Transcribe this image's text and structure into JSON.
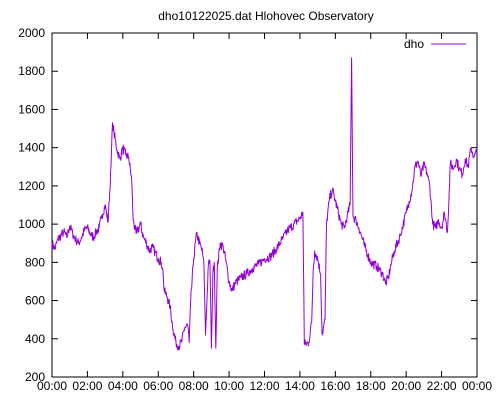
{
  "chart_data": {
    "type": "line",
    "title": "dho10122025.dat Hlohovec Observatory",
    "xlabel": "",
    "ylabel": "",
    "x_unit": "time of day (HH:MM)",
    "xlim": [
      "00:00",
      "24:00"
    ],
    "ylim": [
      200,
      2000
    ],
    "x_ticks": [
      "00:00",
      "02:00",
      "04:00",
      "06:00",
      "08:00",
      "10:00",
      "12:00",
      "14:00",
      "16:00",
      "18:00",
      "20:00",
      "22:00",
      "00:00"
    ],
    "y_ticks": [
      200,
      400,
      600,
      800,
      1000,
      1200,
      1400,
      1600,
      1800,
      2000
    ],
    "grid": false,
    "legend": {
      "position": "top-right"
    },
    "series": [
      {
        "name": "dho",
        "color": "#9400d3",
        "points": [
          [
            "00:00",
            900
          ],
          [
            "00:10",
            870
          ],
          [
            "00:20",
            920
          ],
          [
            "00:30",
            940
          ],
          [
            "00:40",
            960
          ],
          [
            "00:50",
            930
          ],
          [
            "01:00",
            990
          ],
          [
            "01:10",
            950
          ],
          [
            "01:20",
            920
          ],
          [
            "01:30",
            900
          ],
          [
            "01:40",
            930
          ],
          [
            "01:50",
            970
          ],
          [
            "02:00",
            980
          ],
          [
            "02:10",
            950
          ],
          [
            "02:20",
            930
          ],
          [
            "02:30",
            960
          ],
          [
            "02:40",
            980
          ],
          [
            "02:50",
            1050
          ],
          [
            "03:00",
            1100
          ],
          [
            "03:10",
            1010
          ],
          [
            "03:20",
            1300
          ],
          [
            "03:25",
            1530
          ],
          [
            "03:30",
            1480
          ],
          [
            "03:40",
            1390
          ],
          [
            "03:50",
            1340
          ],
          [
            "04:00",
            1400
          ],
          [
            "04:10",
            1360
          ],
          [
            "04:20",
            1350
          ],
          [
            "04:30",
            1230
          ],
          [
            "04:35",
            1020
          ],
          [
            "04:45",
            950
          ],
          [
            "05:00",
            1000
          ],
          [
            "05:10",
            930
          ],
          [
            "05:20",
            900
          ],
          [
            "05:30",
            860
          ],
          [
            "05:40",
            880
          ],
          [
            "05:50",
            850
          ],
          [
            "06:00",
            820
          ],
          [
            "06:10",
            800
          ],
          [
            "06:15",
            770
          ],
          [
            "06:20",
            650
          ],
          [
            "06:30",
            620
          ],
          [
            "06:40",
            570
          ],
          [
            "06:50",
            450
          ],
          [
            "07:00",
            380
          ],
          [
            "07:10",
            360
          ],
          [
            "07:20",
            390
          ],
          [
            "07:30",
            460
          ],
          [
            "07:40",
            470
          ],
          [
            "07:45",
            380
          ],
          [
            "07:50",
            600
          ],
          [
            "08:00",
            820
          ],
          [
            "08:10",
            950
          ],
          [
            "08:20",
            900
          ],
          [
            "08:30",
            850
          ],
          [
            "08:35",
            780
          ],
          [
            "08:40",
            420
          ],
          [
            "08:50",
            790
          ],
          [
            "08:55",
            810
          ],
          [
            "09:00",
            350
          ],
          [
            "09:05",
            740
          ],
          [
            "09:10",
            800
          ],
          [
            "09:15",
            350
          ],
          [
            "09:20",
            770
          ],
          [
            "09:30",
            900
          ],
          [
            "09:40",
            880
          ],
          [
            "09:50",
            800
          ],
          [
            "10:00",
            700
          ],
          [
            "10:10",
            650
          ],
          [
            "10:20",
            690
          ],
          [
            "10:40",
            720
          ],
          [
            "11:00",
            740
          ],
          [
            "11:20",
            770
          ],
          [
            "11:40",
            790
          ],
          [
            "12:00",
            820
          ],
          [
            "12:20",
            830
          ],
          [
            "12:40",
            870
          ],
          [
            "13:00",
            920
          ],
          [
            "13:20",
            970
          ],
          [
            "13:40",
            1000
          ],
          [
            "14:00",
            1030
          ],
          [
            "14:10",
            1060
          ],
          [
            "14:15",
            370
          ],
          [
            "14:30",
            380
          ],
          [
            "14:40",
            490
          ],
          [
            "14:45",
            760
          ],
          [
            "14:50",
            860
          ],
          [
            "15:00",
            820
          ],
          [
            "15:10",
            740
          ],
          [
            "15:15",
            420
          ],
          [
            "15:25",
            500
          ],
          [
            "15:30",
            1000
          ],
          [
            "15:40",
            1130
          ],
          [
            "15:50",
            1180
          ],
          [
            "16:00",
            1120
          ],
          [
            "16:10",
            1060
          ],
          [
            "16:20",
            1000
          ],
          [
            "16:30",
            980
          ],
          [
            "16:40",
            1040
          ],
          [
            "16:50",
            1100
          ],
          [
            "16:55",
            1870
          ],
          [
            "17:00",
            1040
          ],
          [
            "17:10",
            1020
          ],
          [
            "17:20",
            980
          ],
          [
            "17:30",
            930
          ],
          [
            "17:40",
            880
          ],
          [
            "17:50",
            840
          ],
          [
            "18:00",
            800
          ],
          [
            "18:20",
            780
          ],
          [
            "18:40",
            740
          ],
          [
            "18:50",
            690
          ],
          [
            "19:00",
            720
          ],
          [
            "19:10",
            800
          ],
          [
            "19:20",
            860
          ],
          [
            "19:40",
            940
          ],
          [
            "20:00",
            1060
          ],
          [
            "20:10",
            1120
          ],
          [
            "20:20",
            1180
          ],
          [
            "20:30",
            1300
          ],
          [
            "20:40",
            1330
          ],
          [
            "20:50",
            1250
          ],
          [
            "21:00",
            1310
          ],
          [
            "21:10",
            1270
          ],
          [
            "21:20",
            1200
          ],
          [
            "21:30",
            1000
          ],
          [
            "21:40",
            980
          ],
          [
            "21:50",
            1020
          ],
          [
            "22:00",
            980
          ],
          [
            "22:10",
            1060
          ],
          [
            "22:20",
            960
          ],
          [
            "22:30",
            1320
          ],
          [
            "22:40",
            1290
          ],
          [
            "22:50",
            1340
          ],
          [
            "23:00",
            1290
          ],
          [
            "23:10",
            1260
          ],
          [
            "23:20",
            1340
          ],
          [
            "23:30",
            1300
          ],
          [
            "23:40",
            1400
          ],
          [
            "23:50",
            1350
          ],
          [
            "24:00",
            1380
          ]
        ]
      }
    ]
  }
}
